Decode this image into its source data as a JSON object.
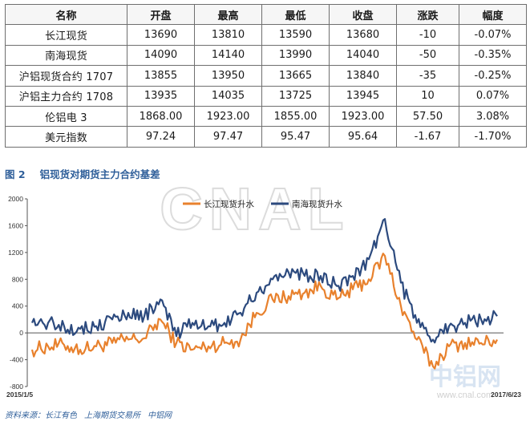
{
  "table": {
    "headers": [
      "名称",
      "开盘",
      "最高",
      "最低",
      "收盘",
      "涨跌",
      "幅度"
    ],
    "rows": [
      [
        "长江现货",
        "13690",
        "13810",
        "13590",
        "13680",
        "-10",
        "-0.07%"
      ],
      [
        "南海现货",
        "14090",
        "14140",
        "13990",
        "14040",
        "-50",
        "-0.35%"
      ],
      [
        "沪铝现货合约 1707",
        "13855",
        "13950",
        "13665",
        "13840",
        "-35",
        "-0.25%"
      ],
      [
        "沪铝主力合约 1708",
        "13935",
        "14035",
        "13725",
        "13945",
        "10",
        "0.07%"
      ],
      [
        "伦铝电 3",
        "1868.00",
        "1923.00",
        "1855.00",
        "1923.00",
        "57.50",
        "3.08%"
      ],
      [
        "美元指数",
        "97.24",
        "97.47",
        "95.47",
        "95.64",
        "-1.67",
        "-1.70%"
      ]
    ]
  },
  "figure": {
    "number": "图 2",
    "title": "铝现货对期货主力合约基差"
  },
  "watermarks": {
    "main": "CNAL",
    "logo_cn": "中铝网",
    "url": "www.cnal.com"
  },
  "source": {
    "prefix": "资料来源：",
    "items": [
      "长江有色",
      "上海期货交易所",
      "中铝网"
    ]
  },
  "chart_data": {
    "type": "line",
    "title": "",
    "xlabel": "",
    "ylabel": "",
    "ylim": [
      -800,
      2000
    ],
    "yticks": [
      -800,
      -400,
      0,
      400,
      800,
      1200,
      1600,
      2000
    ],
    "x_labels": [
      "2015/1/5",
      "2017/6/23"
    ],
    "x": [
      "2015-01",
      "2015-02",
      "2015-03",
      "2015-04",
      "2015-05",
      "2015-06",
      "2015-07",
      "2015-08",
      "2015-09",
      "2015-10",
      "2015-11",
      "2015-12",
      "2016-01",
      "2016-02",
      "2016-03",
      "2016-04",
      "2016-05",
      "2016-06",
      "2016-07",
      "2016-08",
      "2016-09",
      "2016-10",
      "2016-11",
      "2016-12",
      "2017-01",
      "2017-02",
      "2017-03",
      "2017-04",
      "2017-05",
      "2017-06"
    ],
    "legend_position": "top-center",
    "grid": false,
    "colors": {
      "changjiang": "#e8812d",
      "nanhai": "#2c4a7e"
    },
    "series": [
      {
        "name": "长江现货升水",
        "color": "#e8812d",
        "values": [
          -250,
          -200,
          -180,
          -250,
          -200,
          -150,
          -100,
          -80,
          200,
          -150,
          -250,
          -200,
          -150,
          -100,
          300,
          500,
          550,
          600,
          700,
          500,
          650,
          800,
          1150,
          400,
          -100,
          -500,
          -200,
          -150,
          -150,
          -100
        ]
      },
      {
        "name": "南海现货升水",
        "color": "#2c4a7e",
        "values": [
          150,
          150,
          100,
          60,
          100,
          200,
          300,
          250,
          500,
          -50,
          150,
          100,
          150,
          300,
          600,
          800,
          900,
          850,
          850,
          700,
          850,
          1100,
          1700,
          750,
          150,
          -100,
          100,
          150,
          200,
          250
        ]
      }
    ]
  }
}
